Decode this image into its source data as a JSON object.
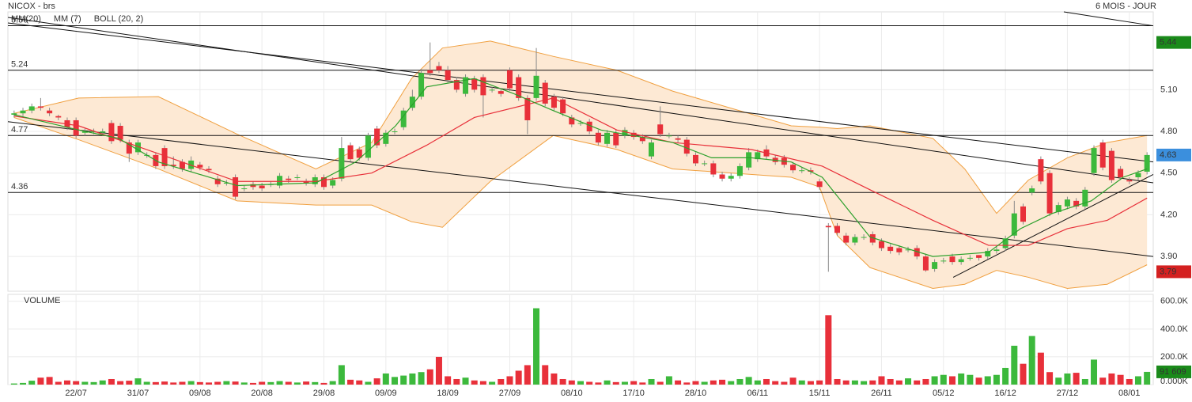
{
  "chart_data": {
    "type": "candlestick",
    "title": "NICOX - brs",
    "period": "6 MOIS - JOUR",
    "xlim": [
      -0.7,
      128.7
    ],
    "xticks": [
      {
        "value": 7,
        "label": "22/07"
      },
      {
        "value": 14,
        "label": "31/07"
      },
      {
        "value": 21,
        "label": "09/08"
      },
      {
        "value": 28,
        "label": "20/08"
      },
      {
        "value": 35,
        "label": "29/08"
      },
      {
        "value": 42,
        "label": "09/09"
      },
      {
        "value": 49,
        "label": "18/09"
      },
      {
        "value": 56,
        "label": "27/09"
      },
      {
        "value": 63,
        "label": "08/10"
      },
      {
        "value": 70,
        "label": "17/10"
      },
      {
        "value": 77,
        "label": "28/10"
      },
      {
        "value": 84,
        "label": "06/11"
      },
      {
        "value": 91,
        "label": "15/11"
      },
      {
        "value": 98,
        "label": "26/11"
      },
      {
        "value": 105,
        "label": "05/12"
      },
      {
        "value": 112,
        "label": "16/12"
      },
      {
        "value": 119,
        "label": "27/12"
      },
      {
        "value": 126,
        "label": "08/01"
      }
    ],
    "ylim": [
      3.65,
      5.66
    ],
    "yticks": [
      {
        "value": 5.1,
        "label": "5.10"
      },
      {
        "value": 4.8,
        "label": "4.80"
      },
      {
        "value": 4.5,
        "label": "4.50"
      },
      {
        "value": 4.2,
        "label": "4.20"
      },
      {
        "value": 3.9,
        "label": "3.90"
      }
    ],
    "grid": true,
    "up_color": "#3cb93c",
    "down_color": "#e8303a",
    "open": [
      4.92,
      4.93,
      4.95,
      4.98,
      4.95,
      4.91,
      4.88,
      4.88,
      4.79,
      4.8,
      4.79,
      4.86,
      4.84,
      4.72,
      4.65,
      4.63,
      4.63,
      4.68,
      4.56,
      4.58,
      4.53,
      4.56,
      4.53,
      4.46,
      4.43,
      4.47,
      4.39,
      4.42,
      4.41,
      4.42,
      4.41,
      4.46,
      4.47,
      4.44,
      4.42,
      4.47,
      4.41,
      4.46,
      4.7,
      4.67,
      4.61,
      4.82,
      4.71,
      4.8,
      4.83,
      4.97,
      5.05,
      5.24,
      5.27,
      5.24,
      5.17,
      5.07,
      5.18,
      5.19,
      5.1,
      5.09,
      5.24,
      5.19,
      5.04,
      5.04,
      5.15,
      5.05,
      5.03,
      4.9,
      4.86,
      4.87,
      4.79,
      4.71,
      4.79,
      4.77,
      4.79,
      4.76,
      4.62,
      4.85,
      4.77,
      4.75,
      4.74,
      4.63,
      4.57,
      4.57,
      4.49,
      4.46,
      4.48,
      4.54,
      4.6,
      4.67,
      4.61,
      4.61,
      4.56,
      4.52,
      4.52,
      4.44,
      4.12,
      4.12,
      4.05,
      4.0,
      4.04,
      4.06,
      4.01,
      3.97,
      3.96,
      3.95,
      3.96,
      3.9,
      3.81,
      3.87,
      3.9,
      3.86,
      3.89,
      3.91,
      3.9,
      3.94,
      3.96,
      4.05,
      4.26,
      4.36,
      4.6,
      4.5,
      4.22,
      4.26,
      4.3,
      4.26,
      4.5,
      4.72,
      4.66,
      4.53,
      4.45,
      4.47,
      4.51
    ],
    "high": [
      4.95,
      4.97,
      5.0,
      5.04,
      4.97,
      4.92,
      4.9,
      4.9,
      4.82,
      4.82,
      4.82,
      4.88,
      4.86,
      4.74,
      4.74,
      4.65,
      4.65,
      4.7,
      4.62,
      4.6,
      4.62,
      4.58,
      4.55,
      4.48,
      4.45,
      4.49,
      4.41,
      4.44,
      4.43,
      4.44,
      4.5,
      4.48,
      4.49,
      4.46,
      4.49,
      4.49,
      4.47,
      4.76,
      4.72,
      4.69,
      4.79,
      4.84,
      4.81,
      4.82,
      4.97,
      5.1,
      5.25,
      5.44,
      5.3,
      5.27,
      5.19,
      5.21,
      5.2,
      5.21,
      5.12,
      5.11,
      5.26,
      5.21,
      5.06,
      5.4,
      5.17,
      5.07,
      5.05,
      4.92,
      4.88,
      4.89,
      4.81,
      4.81,
      4.81,
      4.83,
      4.81,
      4.78,
      4.74,
      4.98,
      4.79,
      4.77,
      4.76,
      4.65,
      4.59,
      4.59,
      4.51,
      4.5,
      4.57,
      4.68,
      4.67,
      4.7,
      4.63,
      4.63,
      4.58,
      4.54,
      4.54,
      4.46,
      4.14,
      4.14,
      4.07,
      4.06,
      4.06,
      4.08,
      4.03,
      3.99,
      3.98,
      3.97,
      3.98,
      3.92,
      3.88,
      3.89,
      3.92,
      3.9,
      3.91,
      3.91,
      3.96,
      3.97,
      4.05,
      4.3,
      4.28,
      4.41,
      4.62,
      4.52,
      4.29,
      4.33,
      4.32,
      4.4,
      4.7,
      4.74,
      4.68,
      4.55,
      4.47,
      4.52,
      4.65
    ],
    "low": [
      4.9,
      4.91,
      4.93,
      4.95,
      4.91,
      4.88,
      4.81,
      4.75,
      4.77,
      4.78,
      4.77,
      4.71,
      4.72,
      4.58,
      4.63,
      4.61,
      4.53,
      4.53,
      4.53,
      4.51,
      4.51,
      4.52,
      4.5,
      4.4,
      4.41,
      4.31,
      4.37,
      4.38,
      4.37,
      4.4,
      4.39,
      4.43,
      4.45,
      4.41,
      4.4,
      4.38,
      4.39,
      4.44,
      4.58,
      4.59,
      4.59,
      4.68,
      4.69,
      4.78,
      4.81,
      4.95,
      5.03,
      5.2,
      5.22,
      5.15,
      5.08,
      5.05,
      5.08,
      4.9,
      5.08,
      5.05,
      5.09,
      5.02,
      4.78,
      5.02,
      4.98,
      4.95,
      4.91,
      4.83,
      4.84,
      4.78,
      4.7,
      4.69,
      4.68,
      4.75,
      4.74,
      4.71,
      4.6,
      4.76,
      4.75,
      4.72,
      4.62,
      4.55,
      4.55,
      4.47,
      4.44,
      4.44,
      4.46,
      4.52,
      4.58,
      4.6,
      4.56,
      4.54,
      4.5,
      4.5,
      4.49,
      4.38,
      3.79,
      4.05,
      3.98,
      3.98,
      4.02,
      3.98,
      3.94,
      3.92,
      3.91,
      3.93,
      3.88,
      3.79,
      3.79,
      3.85,
      3.84,
      3.84,
      3.87,
      3.87,
      3.88,
      3.92,
      3.94,
      4.03,
      4.13,
      4.34,
      4.42,
      4.19,
      4.2,
      4.24,
      4.24,
      4.24,
      4.48,
      4.52,
      4.43,
      4.45,
      4.42,
      4.45,
      4.49
    ],
    "close": [
      4.93,
      4.95,
      4.98,
      4.97,
      4.93,
      4.9,
      4.83,
      4.77,
      4.8,
      4.8,
      4.8,
      4.73,
      4.74,
      4.64,
      4.72,
      4.63,
      4.55,
      4.55,
      4.55,
      4.53,
      4.59,
      4.54,
      4.52,
      4.42,
      4.43,
      4.33,
      4.39,
      4.4,
      4.39,
      4.42,
      4.48,
      4.45,
      4.47,
      4.43,
      4.47,
      4.4,
      4.45,
      4.68,
      4.6,
      4.61,
      4.77,
      4.7,
      4.79,
      4.8,
      4.95,
      5.05,
      5.22,
      5.22,
      5.24,
      5.17,
      5.1,
      5.19,
      5.1,
      5.06,
      5.1,
      5.07,
      5.11,
      5.04,
      4.88,
      5.2,
      5.0,
      4.97,
      4.93,
      4.85,
      4.86,
      4.8,
      4.72,
      4.79,
      4.7,
      4.81,
      4.76,
      4.73,
      4.72,
      4.78,
      4.77,
      4.74,
      4.64,
      4.57,
      4.57,
      4.49,
      4.46,
      4.48,
      4.55,
      4.65,
      4.65,
      4.62,
      4.58,
      4.56,
      4.52,
      4.52,
      4.51,
      4.4,
      4.11,
      4.07,
      4.0,
      4.04,
      4.04,
      4.0,
      3.96,
      3.94,
      3.93,
      3.95,
      3.9,
      3.8,
      3.86,
      3.87,
      3.86,
      3.88,
      3.89,
      3.89,
      3.94,
      3.95,
      4.03,
      4.21,
      4.15,
      4.39,
      4.44,
      4.21,
      4.27,
      4.31,
      4.26,
      4.38,
      4.68,
      4.54,
      4.45,
      4.47,
      4.44,
      4.5,
      4.63
    ],
    "series": [
      {
        "name": "MM(20)",
        "color": "#e8303a",
        "x": [
          0,
          7.3,
          16.3,
          25.2,
          34.1,
          40.4,
          46.6,
          52,
          60.9,
          68.1,
          74.4,
          83.3,
          91.3,
          96.7,
          103.8,
          110.1,
          114.6,
          119,
          123.5,
          128
        ],
        "values": [
          4.91,
          4.84,
          4.64,
          4.44,
          4.44,
          4.5,
          4.7,
          4.9,
          5.04,
          4.81,
          4.72,
          4.67,
          4.55,
          4.38,
          4.16,
          3.98,
          3.98,
          4.1,
          4.16,
          4.32
        ]
      },
      {
        "name": "MM (7)",
        "color": "#2ca02c",
        "x": [
          0,
          7.3,
          11.8,
          16.3,
          25.2,
          34.1,
          38.6,
          43.1,
          46.6,
          52,
          56.5,
          60.9,
          66.3,
          74.4,
          78.8,
          83.3,
          87.8,
          91.3,
          96.7,
          103.8,
          110.1,
          113.7,
          117.3,
          121.7,
          125.3,
          128
        ],
        "values": [
          4.92,
          4.81,
          4.75,
          4.58,
          4.41,
          4.43,
          4.58,
          4.84,
          5.12,
          5.18,
          5.07,
          4.95,
          4.81,
          4.72,
          4.61,
          4.61,
          4.58,
          4.47,
          4.04,
          3.9,
          3.93,
          4.1,
          4.21,
          4.3,
          4.47,
          4.53
        ]
      }
    ],
    "bollinger": {
      "name": "BOLL (20, 2)",
      "color": "#f0a040",
      "fill": "#fde9d4",
      "x": [
        0,
        7.3,
        16.3,
        25.2,
        34.1,
        40.4,
        44.9,
        48.4,
        53.8,
        60.9,
        68.1,
        74.4,
        87.8,
        91,
        93,
        96.7,
        103.8,
        107.4,
        111,
        114.6,
        119,
        123.5,
        128
      ],
      "upper": [
        4.93,
        5.04,
        5.05,
        4.78,
        4.53,
        4.72,
        5.18,
        5.4,
        5.45,
        5.34,
        5.24,
        5.09,
        4.84,
        4.83,
        4.82,
        4.84,
        4.75,
        4.53,
        4.21,
        4.45,
        4.61,
        4.72,
        4.77
      ],
      "lower": [
        4.9,
        4.74,
        4.53,
        4.3,
        4.27,
        4.27,
        4.15,
        4.11,
        4.44,
        4.77,
        4.67,
        4.53,
        4.47,
        4.4,
        4.05,
        3.82,
        3.67,
        3.7,
        3.8,
        3.75,
        3.67,
        3.7,
        3.84
      ]
    },
    "levels": [
      5.56,
      5.24,
      4.77,
      4.36
    ],
    "trendlines": [
      {
        "x": [
          -0.7,
          128.7
        ],
        "y": [
          5.58,
          4.58
        ]
      },
      {
        "x": [
          -0.7,
          128.7
        ],
        "y": [
          5.62,
          4.43
        ]
      },
      {
        "x": [
          -0.7,
          128.7
        ],
        "y": [
          4.87,
          3.9
        ]
      },
      {
        "x": [
          118.6,
          128.7
        ],
        "y": [
          5.66,
          5.56
        ]
      },
      {
        "x": [
          106.1,
          128.7
        ],
        "y": [
          3.75,
          4.49
        ]
      }
    ],
    "badges": [
      {
        "value": 5.44,
        "color": "#1a8a1a"
      },
      {
        "value": 4.63,
        "color": "#3b8fdd"
      },
      {
        "value": 3.79,
        "color": "#d42020"
      }
    ],
    "volume": {
      "title": "VOLUME",
      "ylim": [
        0,
        650
      ],
      "yticks": [
        {
          "value": 600,
          "label": "600.0K"
        },
        {
          "value": 400,
          "label": "400.0K"
        },
        {
          "value": 200,
          "label": "200.0K"
        },
        {
          "value": 0,
          "label": "0.000K"
        }
      ],
      "values": [
        8,
        12,
        28,
        50,
        55,
        20,
        30,
        25,
        20,
        18,
        30,
        40,
        25,
        28,
        45,
        20,
        18,
        22,
        15,
        20,
        25,
        18,
        15,
        20,
        25,
        22,
        15,
        12,
        20,
        18,
        25,
        20,
        15,
        22,
        18,
        12,
        25,
        140,
        35,
        30,
        20,
        45,
        80,
        55,
        65,
        80,
        90,
        110,
        200,
        60,
        40,
        50,
        30,
        25,
        20,
        40,
        60,
        100,
        140,
        550,
        140,
        80,
        40,
        30,
        25,
        20,
        15,
        30,
        18,
        20,
        25,
        15,
        40,
        20,
        60,
        30,
        15,
        25,
        20,
        30,
        35,
        25,
        40,
        55,
        30,
        40,
        25,
        20,
        50,
        30,
        25,
        30,
        500,
        40,
        30,
        30,
        25,
        30,
        60,
        40,
        30,
        45,
        30,
        40,
        60,
        70,
        60,
        80,
        70,
        50,
        60,
        70,
        120,
        280,
        150,
        350,
        230,
        90,
        50,
        80,
        85,
        40,
        180,
        50,
        80,
        70,
        40,
        60,
        91.609
      ],
      "badge": {
        "value": 91.609,
        "label": "91 609",
        "color": "#1a8a1a"
      }
    }
  }
}
